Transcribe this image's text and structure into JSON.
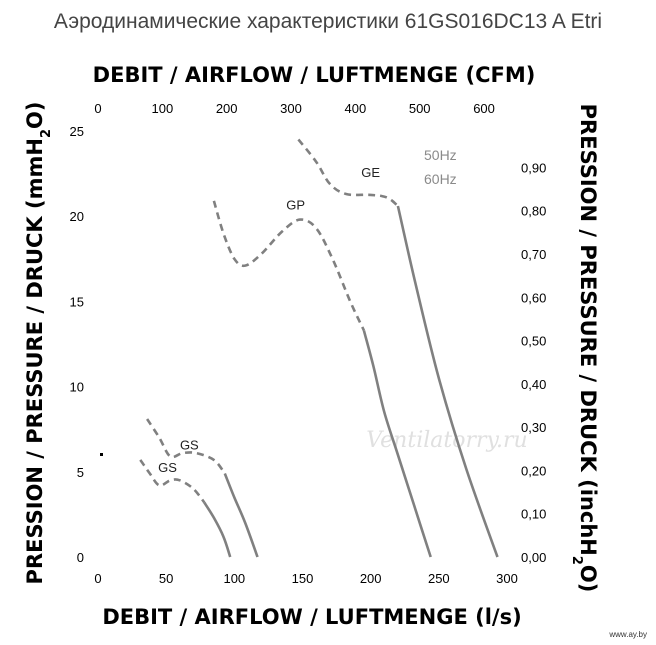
{
  "chart_data": {
    "type": "line",
    "title": "Аэродинамические характеристики 61GS016DC13 A Etri",
    "xlabel_bottom": "DEBIT / AIRFLOW / LUFTMENGE (l/s)",
    "xlabel_top": "DEBIT / AIRFLOW / LUFTMENGE (CFM)",
    "ylabel_left_main": "PRESSION / PRESSURE / DRUCK (mmH",
    "ylabel_left_sub": "2",
    "ylabel_left_tail": "O)",
    "ylabel_right_main": "PRESSION / PRESSURE / DRUCK (inchH",
    "ylabel_right_sub": "2",
    "ylabel_right_tail": "O)",
    "x_bottom_ticks": [
      "0",
      "50",
      "100",
      "150",
      "200",
      "250",
      "300"
    ],
    "x_top_ticks": [
      "0",
      "100",
      "200",
      "300",
      "400",
      "500",
      "600"
    ],
    "y_left_ticks": [
      "0",
      "5",
      "10",
      "15",
      "20",
      "25"
    ],
    "y_right_ticks": [
      "0,00",
      "0,10",
      "0,20",
      "0,30",
      "0,40",
      "0,50",
      "0,60",
      "0,70",
      "0,80",
      "0,90"
    ],
    "xlim": [
      0,
      300
    ],
    "ylim": [
      0,
      25
    ],
    "legend": [
      {
        "label": "50Hz",
        "style": "solid"
      },
      {
        "label": "60Hz",
        "style": "dashed"
      }
    ],
    "series": [
      {
        "label": "GE",
        "style": "dashed",
        "points": [
          [
            147,
            24.5
          ],
          [
            160,
            23.2
          ],
          [
            170,
            21.9
          ],
          [
            182,
            21.3
          ],
          [
            200,
            21.25
          ],
          [
            212,
            21.1
          ],
          [
            220,
            20.6
          ]
        ]
      },
      {
        "label": "GE",
        "style": "solid",
        "points": [
          [
            220,
            20.6
          ],
          [
            233,
            16
          ],
          [
            250,
            10.5
          ],
          [
            270,
            5.2
          ],
          [
            293,
            0
          ]
        ]
      },
      {
        "label": "GP",
        "style": "dashed",
        "points": [
          [
            85,
            20.9
          ],
          [
            92,
            19
          ],
          [
            100,
            17.5
          ],
          [
            108,
            17.1
          ],
          [
            120,
            17.8
          ],
          [
            135,
            19.1
          ],
          [
            148,
            19.8
          ],
          [
            160,
            19.3
          ],
          [
            172,
            17.5
          ],
          [
            185,
            15
          ],
          [
            195,
            13.3
          ]
        ]
      },
      {
        "label": "GP",
        "style": "solid",
        "points": [
          [
            195,
            13.3
          ],
          [
            202,
            11.2
          ],
          [
            210,
            8.5
          ],
          [
            220,
            6
          ],
          [
            232,
            3
          ],
          [
            244,
            0
          ]
        ]
      },
      {
        "label": "GS",
        "style": "dashed",
        "points": [
          [
            36,
            8.1
          ],
          [
            45,
            7
          ],
          [
            53,
            5.9
          ],
          [
            62,
            6.1
          ],
          [
            72,
            6.1
          ],
          [
            85,
            5.7
          ],
          [
            93,
            4.9
          ]
        ]
      },
      {
        "label": "GS",
        "style": "solid",
        "points": [
          [
            93,
            4.9
          ],
          [
            100,
            3.5
          ],
          [
            108,
            2
          ],
          [
            117,
            0
          ]
        ]
      },
      {
        "label": "GS",
        "style": "dashed",
        "points": [
          [
            31,
            5.7
          ],
          [
            38,
            4.9
          ],
          [
            45,
            4.2
          ],
          [
            53,
            4.5
          ],
          [
            60,
            4.5
          ],
          [
            70,
            4
          ],
          [
            78,
            3.2
          ]
        ]
      },
      {
        "label": "GS",
        "style": "solid",
        "points": [
          [
            78,
            3.2
          ],
          [
            85,
            2.3
          ],
          [
            92,
            1.2
          ],
          [
            97,
            0
          ]
        ]
      }
    ],
    "labels": [
      {
        "text": "GE",
        "x": 200,
        "y": 22.3
      },
      {
        "text": "GP",
        "x": 145,
        "y": 20.4
      },
      {
        "text": "GS",
        "x": 67,
        "y": 6.3
      },
      {
        "text": "GS",
        "x": 51,
        "y": 5
      }
    ],
    "grid": false
  },
  "watermark": "Ventilatorry.ru",
  "footer": "www.ay.by"
}
